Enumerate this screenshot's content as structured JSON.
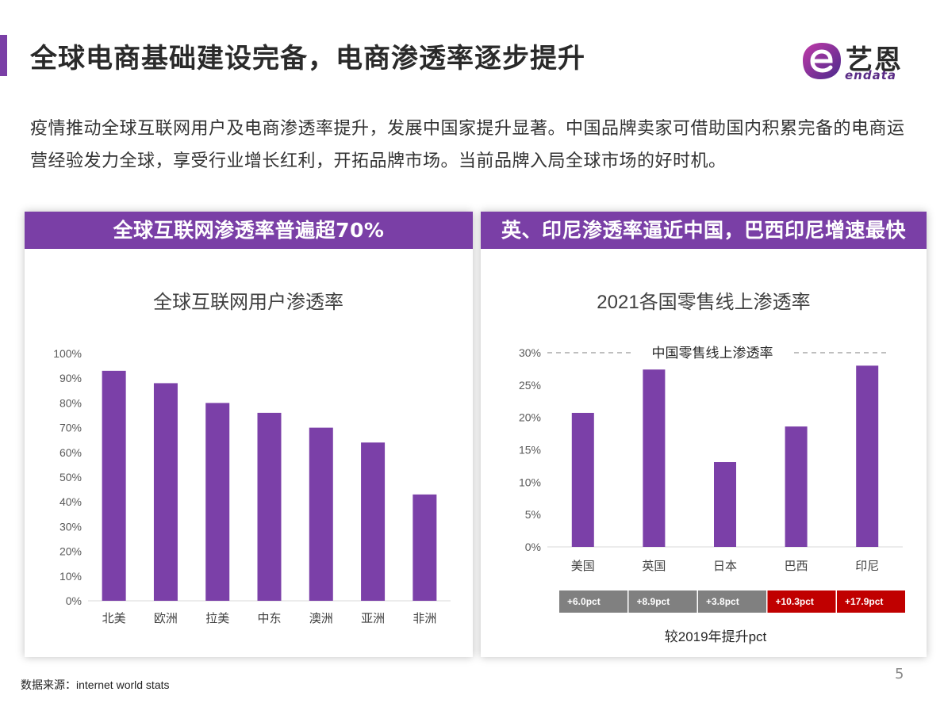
{
  "title": "全球电商基础建设完备，电商渗透率逐步提升",
  "logo": {
    "cn": "艺恩",
    "en": "endata"
  },
  "intro": "疫情推动全球互联网用户及电商渗透率提升，发展中国家提升显著。中国品牌卖家可借助国内积累完备的电商运营经验发力全球，享受行业增长红利，开拓品牌市场。当前品牌入局全球市场的好时机。",
  "left_panel": {
    "header": "全球互联网渗透率普遍超70%"
  },
  "right_panel": {
    "header": "英、印尼渗透率逼近中国，巴西印尼增速最快"
  },
  "source": "数据来源：internet world stats",
  "page_number": "5",
  "colors": {
    "accent": "#7a3fa6",
    "bar": "#7b40a8",
    "pct_gray": "#808080",
    "pct_red": "#c00000",
    "gridline": "#d9d9d9",
    "axis_text": "#595959"
  },
  "chart_data": [
    {
      "type": "bar",
      "title": "全球互联网用户渗透率",
      "categories": [
        "北美",
        "欧洲",
        "拉美",
        "中东",
        "澳洲",
        "亚洲",
        "非洲"
      ],
      "values": [
        93,
        88,
        80,
        76,
        70,
        64,
        43
      ],
      "ylim": [
        0,
        100
      ],
      "yticks": [
        0,
        10,
        20,
        30,
        40,
        50,
        60,
        70,
        80,
        90,
        100
      ],
      "ytick_labels": [
        "0%",
        "10%",
        "20%",
        "30%",
        "40%",
        "50%",
        "60%",
        "70%",
        "80%",
        "90%",
        "100%"
      ],
      "grid": false
    },
    {
      "type": "bar",
      "title": "2021各国零售线上渗透率",
      "categories": [
        "美国",
        "英国",
        "日本",
        "巴西",
        "印尼"
      ],
      "values": [
        20.7,
        27.4,
        13.1,
        18.6,
        28.0
      ],
      "ylim": [
        0,
        30
      ],
      "yticks": [
        0,
        5,
        10,
        15,
        20,
        25,
        30
      ],
      "ytick_labels": [
        "0%",
        "5%",
        "10%",
        "15%",
        "20%",
        "25%",
        "30%"
      ],
      "reference_line": {
        "label": "中国零售线上渗透率",
        "value": 30
      },
      "increase": {
        "label": "较2019年提升pct",
        "values": [
          "+6.0pct",
          "+8.9pct",
          "+3.8pct",
          "+10.3pct",
          "+17.9pct"
        ],
        "highlight": [
          false,
          false,
          false,
          true,
          true
        ]
      },
      "grid": false
    }
  ]
}
